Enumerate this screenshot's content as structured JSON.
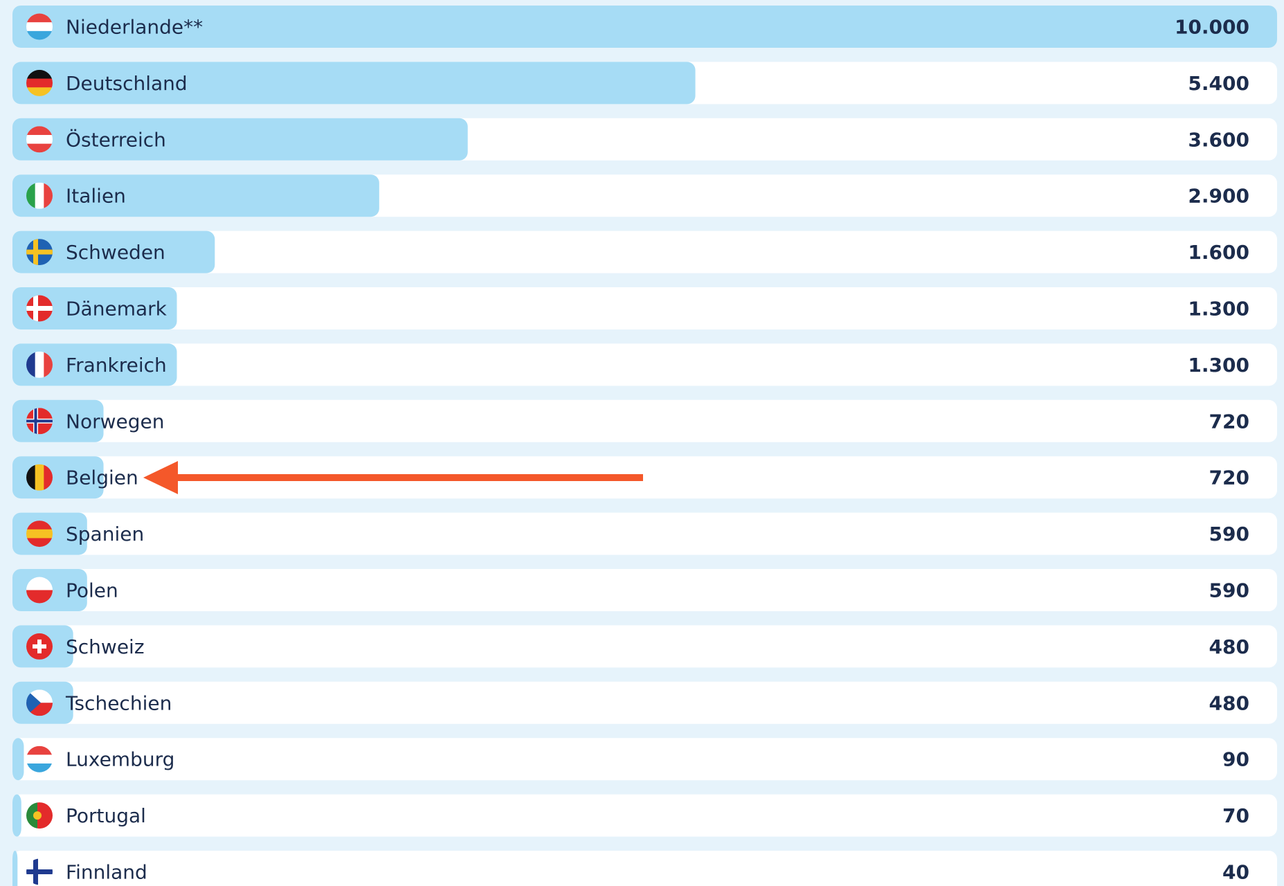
{
  "chart_data": {
    "type": "bar",
    "orientation": "horizontal",
    "categories": [
      "Niederlande**",
      "Deutschland",
      "Österreich",
      "Italien",
      "Schweden",
      "Dänemark",
      "Frankreich",
      "Norwegen",
      "Belgien",
      "Spanien",
      "Polen",
      "Schweiz",
      "Tschechien",
      "Luxemburg",
      "Portugal",
      "Finnland"
    ],
    "values": [
      10000,
      5400,
      3600,
      2900,
      1600,
      1300,
      1300,
      720,
      720,
      590,
      590,
      480,
      480,
      90,
      70,
      40
    ],
    "value_labels": [
      "10.000",
      "5.400",
      "3.600",
      "2.900",
      "1.600",
      "1.300",
      "1.300",
      "720",
      "720",
      "590",
      "590",
      "480",
      "480",
      "90",
      "70",
      "40"
    ],
    "color": "#a6dcf5",
    "xlim": [
      0,
      10000
    ]
  }
}
